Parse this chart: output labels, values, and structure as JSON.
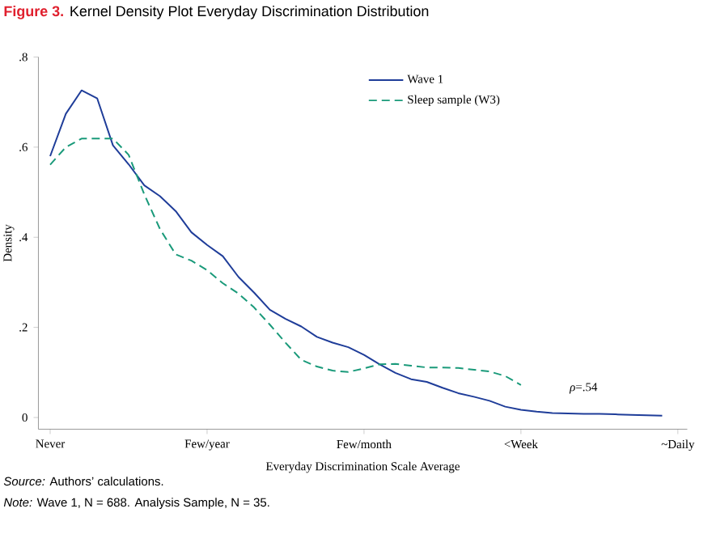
{
  "chart_data": {
    "type": "line",
    "title": "Figure 3.",
    "subtitle": "Kernel Density Plot Everyday Discrimination Distribution",
    "xlabel": "Everyday Discrimination Scale Average",
    "ylabel": "Density",
    "annotations": [
      "*ρ*=.54",
      "*Source:* Authors’ calculations.",
      "*Note:* Wave 1, N = 688. Analysis Sample, N = 35."
    ],
    "categories": [
      "Never",
      null,
      null,
      null,
      null,
      null,
      null,
      null,
      null,
      null,
      "Few/year",
      null,
      null,
      null,
      null,
      null,
      null,
      null,
      null,
      null,
      "Few/month",
      null,
      null,
      null,
      null,
      null,
      null,
      null,
      null,
      null,
      "<Week",
      null,
      null,
      null,
      null,
      null,
      null,
      null,
      null,
      null,
      "~Daily"
    ],
    "ylim": [
      -0.026,
      0.8
    ],
    "yticks": [
      0,
      {
        "value": 0.2,
        "label": ".2"
      },
      {
        "value": 0.4,
        "label": ".4"
      },
      {
        "value": 0.6,
        "label": ".6"
      },
      {
        "value": 0.8,
        "label": ".8"
      }
    ],
    "legend": "top right",
    "grid": false,
    "series": [
      {
        "name": "Wave  1",
        "color": "#1f3d99",
        "line_style": "solid",
        "values": [
          0.58,
          0.674,
          0.726,
          0.708,
          0.604,
          0.562,
          0.515,
          0.491,
          0.458,
          0.411,
          0.383,
          0.358,
          0.312,
          0.277,
          0.239,
          0.219,
          0.202,
          0.179,
          0.166,
          0.156,
          0.139,
          0.118,
          0.099,
          0.085,
          0.079,
          0.066,
          0.054,
          0.046,
          0.037,
          0.024,
          0.017,
          0.013,
          0.01,
          0.009,
          0.008,
          0.008,
          0.007,
          0.006,
          0.005,
          0.004,
          null
        ]
      },
      {
        "name": "Sleep sample (W3)",
        "color": "#1a9a7a",
        "line_style": "dashed",
        "values": [
          0.561,
          0.6,
          0.619,
          0.619,
          0.619,
          0.583,
          0.495,
          0.418,
          0.362,
          0.348,
          0.327,
          0.298,
          0.275,
          0.244,
          0.206,
          0.166,
          0.128,
          0.113,
          0.104,
          0.101,
          0.109,
          0.118,
          0.119,
          0.115,
          0.111,
          0.111,
          0.11,
          0.106,
          0.102,
          0.092,
          0.072,
          null,
          null,
          null,
          null,
          null,
          null,
          null,
          null,
          null,
          null
        ]
      }
    ]
  }
}
